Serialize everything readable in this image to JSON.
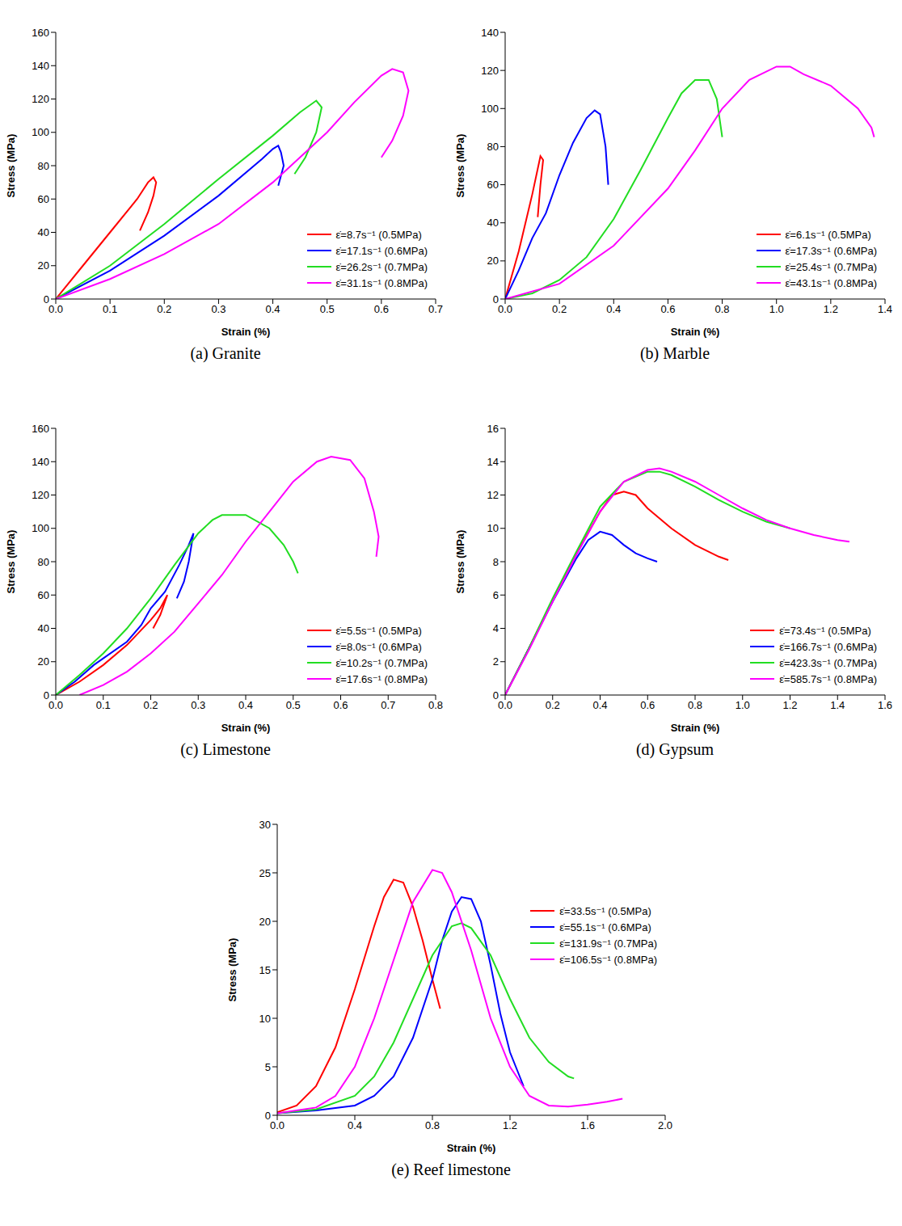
{
  "chart_data": [
    {
      "type": "line",
      "title": "(a) Granite",
      "x_label": "Strain (%)",
      "y_label": "Stress (MPa)",
      "xlim": [
        0,
        0.7
      ],
      "ylim": [
        0,
        160
      ],
      "xticks": [
        {
          "value": 0,
          "label": "0.0"
        },
        0.1,
        0.2,
        0.3,
        0.4,
        0.5,
        0.6,
        0.7
      ],
      "yticks": [
        0,
        20,
        40,
        60,
        80,
        100,
        120,
        140,
        160
      ],
      "grid": false,
      "legend": "lower right",
      "series": [
        {
          "name": "ε̇=8.7s⁻¹ (0.5MPa)",
          "color": "#ff0000",
          "x": [
            0,
            0.05,
            0.1,
            0.15,
            0.17,
            0.18,
            0.185,
            0.18,
            0.17,
            0.155
          ],
          "values": [
            0,
            20,
            40,
            60,
            70,
            73,
            70,
            62,
            52,
            41
          ]
        },
        {
          "name": "ε̇=17.1s⁻¹ (0.6MPa)",
          "color": "#0000ff",
          "x": [
            0,
            0.1,
            0.2,
            0.3,
            0.38,
            0.4,
            0.41,
            0.415,
            0.42,
            0.41
          ],
          "values": [
            0,
            17,
            38,
            62,
            84,
            90,
            92,
            88,
            80,
            68
          ]
        },
        {
          "name": "ε̇=26.2s⁻¹ (0.7MPa)",
          "color": "#22dd22",
          "x": [
            0,
            0.1,
            0.2,
            0.3,
            0.4,
            0.45,
            0.48,
            0.49,
            0.48,
            0.46,
            0.44
          ],
          "values": [
            0,
            20,
            45,
            72,
            98,
            112,
            119,
            115,
            100,
            85,
            75
          ]
        },
        {
          "name": "ε̇=31.1s⁻¹ (0.8MPa)",
          "color": "#ff00ff",
          "x": [
            0,
            0.1,
            0.2,
            0.3,
            0.4,
            0.5,
            0.55,
            0.6,
            0.62,
            0.64,
            0.65,
            0.64,
            0.62,
            0.6
          ],
          "values": [
            0,
            12,
            27,
            45,
            70,
            100,
            118,
            134,
            138,
            136,
            125,
            110,
            95,
            85
          ]
        }
      ]
    },
    {
      "type": "line",
      "title": "(b) Marble",
      "x_label": "Strain (%)",
      "y_label": "Stress (MPa)",
      "xlim": [
        0,
        1.4
      ],
      "ylim": [
        0,
        140
      ],
      "xticks": [
        {
          "value": 0,
          "label": "0.0"
        },
        0.2,
        0.4,
        0.6,
        0.8,
        {
          "value": 1,
          "label": "1.0"
        },
        1.2,
        1.4
      ],
      "yticks": [
        0,
        20,
        40,
        60,
        80,
        100,
        120,
        140
      ],
      "grid": false,
      "legend": "lower right",
      "series": [
        {
          "name": "ε̇=6.1s⁻¹ (0.5MPa)",
          "color": "#ff0000",
          "x": [
            0,
            0.05,
            0.1,
            0.13,
            0.14,
            0.13,
            0.12
          ],
          "values": [
            0,
            25,
            55,
            75,
            73,
            60,
            43
          ]
        },
        {
          "name": "ε̇=17.3s⁻¹ (0.6MPa)",
          "color": "#0000ff",
          "x": [
            0,
            0.05,
            0.1,
            0.15,
            0.2,
            0.25,
            0.3,
            0.33,
            0.35,
            0.37,
            0.38
          ],
          "values": [
            0,
            15,
            32,
            45,
            65,
            82,
            95,
            99,
            97,
            80,
            60
          ]
        },
        {
          "name": "ε̇=25.4s⁻¹ (0.7MPa)",
          "color": "#22dd22",
          "x": [
            0,
            0.1,
            0.2,
            0.3,
            0.4,
            0.5,
            0.6,
            0.65,
            0.7,
            0.75,
            0.78,
            0.8
          ],
          "values": [
            0,
            3,
            10,
            22,
            42,
            68,
            95,
            108,
            115,
            115,
            105,
            85
          ]
        },
        {
          "name": "ε̇=43.1s⁻¹ (0.8MPa)",
          "color": "#ff00ff",
          "x": [
            0,
            0.2,
            0.4,
            0.6,
            0.7,
            0.8,
            0.9,
            1.0,
            1.05,
            1.1,
            1.2,
            1.3,
            1.35,
            1.36
          ],
          "values": [
            0,
            8,
            28,
            58,
            78,
            100,
            115,
            122,
            122,
            118,
            112,
            100,
            90,
            85
          ]
        }
      ]
    },
    {
      "type": "line",
      "title": "(c) Limestone",
      "x_label": "Strain (%)",
      "y_label": "Stress (MPa)",
      "xlim": [
        0,
        0.8
      ],
      "ylim": [
        0,
        160
      ],
      "xticks": [
        {
          "value": 0,
          "label": "0.0"
        },
        0.1,
        0.2,
        0.3,
        0.4,
        0.5,
        0.6,
        0.7,
        0.8
      ],
      "yticks": [
        0,
        20,
        40,
        60,
        80,
        100,
        120,
        140,
        160
      ],
      "grid": false,
      "legend": "lower right",
      "series": [
        {
          "name": "ε̇=5.5s⁻¹ (0.5MPa)",
          "color": "#ff0000",
          "x": [
            0,
            0.05,
            0.1,
            0.15,
            0.2,
            0.22,
            0.235,
            0.22,
            0.205
          ],
          "values": [
            0,
            8,
            18,
            30,
            45,
            52,
            60,
            48,
            40
          ]
        },
        {
          "name": "ε̇=8.0s⁻¹ (0.6MPa)",
          "color": "#0000ff",
          "x": [
            0,
            0.04,
            0.08,
            0.1,
            0.15,
            0.18,
            0.2,
            0.23,
            0.26,
            0.28,
            0.29,
            0.28,
            0.27,
            0.255
          ],
          "values": [
            0,
            8,
            18,
            22,
            32,
            42,
            52,
            62,
            78,
            90,
            97,
            80,
            68,
            58
          ]
        },
        {
          "name": "ε̇=10.2s⁻¹ (0.7MPa)",
          "color": "#22dd22",
          "x": [
            0,
            0.05,
            0.1,
            0.15,
            0.2,
            0.25,
            0.3,
            0.33,
            0.35,
            0.4,
            0.45,
            0.48,
            0.5,
            0.51
          ],
          "values": [
            0,
            12,
            25,
            40,
            58,
            78,
            97,
            105,
            108,
            108,
            100,
            90,
            80,
            73
          ]
        },
        {
          "name": "ε̇=17.6s⁻¹ (0.8MPa)",
          "color": "#ff00ff",
          "x": [
            0.05,
            0.1,
            0.15,
            0.2,
            0.25,
            0.3,
            0.35,
            0.4,
            0.45,
            0.5,
            0.55,
            0.58,
            0.62,
            0.65,
            0.67,
            0.68,
            0.675
          ],
          "values": [
            0,
            6,
            14,
            25,
            38,
            55,
            72,
            92,
            110,
            128,
            140,
            143,
            141,
            130,
            110,
            95,
            83
          ]
        }
      ]
    },
    {
      "type": "line",
      "title": "(d) Gypsum",
      "x_label": "Strain (%)",
      "y_label": "Stress (MPa)",
      "xlim": [
        0,
        1.6
      ],
      "ylim": [
        0,
        16
      ],
      "xticks": [
        {
          "value": 0,
          "label": "0.0"
        },
        0.2,
        0.4,
        0.6,
        0.8,
        {
          "value": 1,
          "label": "1.0"
        },
        1.2,
        1.4,
        1.6
      ],
      "yticks": [
        0,
        2,
        4,
        6,
        8,
        10,
        12,
        14,
        16
      ],
      "grid": false,
      "legend": "lower right",
      "series": [
        {
          "name": "ε̇=73.4s⁻¹ (0.5MPa)",
          "color": "#ff0000",
          "x": [
            0,
            0.1,
            0.2,
            0.3,
            0.4,
            0.45,
            0.5,
            0.55,
            0.6,
            0.7,
            0.8,
            0.9,
            0.94
          ],
          "values": [
            0,
            2.8,
            5.7,
            8.5,
            11,
            12,
            12.2,
            12,
            11.2,
            10,
            9,
            8.3,
            8.1
          ]
        },
        {
          "name": "ε̇=166.7s⁻¹ (0.6MPa)",
          "color": "#0000ff",
          "x": [
            0,
            0.1,
            0.2,
            0.3,
            0.35,
            0.4,
            0.45,
            0.5,
            0.55,
            0.6,
            0.64
          ],
          "values": [
            0,
            2.8,
            5.6,
            8.2,
            9.3,
            9.8,
            9.6,
            9,
            8.5,
            8.2,
            8
          ]
        },
        {
          "name": "ε̇=423.3s⁻¹ (0.7MPa)",
          "color": "#22dd22",
          "x": [
            0,
            0.1,
            0.2,
            0.3,
            0.4,
            0.5,
            0.6,
            0.65,
            0.7,
            0.8,
            0.9,
            1.0,
            1.1,
            1.2
          ],
          "values": [
            0,
            2.8,
            5.8,
            8.6,
            11.3,
            12.8,
            13.4,
            13.4,
            13.2,
            12.5,
            11.7,
            11,
            10.4,
            10
          ]
        },
        {
          "name": "ε̇=585.7s⁻¹ (0.8MPa)",
          "color": "#ff00ff",
          "x": [
            0,
            0.1,
            0.2,
            0.3,
            0.4,
            0.5,
            0.6,
            0.65,
            0.7,
            0.8,
            0.9,
            1.0,
            1.1,
            1.2,
            1.3,
            1.4,
            1.45
          ],
          "values": [
            0,
            2.7,
            5.6,
            8.4,
            11,
            12.8,
            13.5,
            13.6,
            13.4,
            12.8,
            12,
            11.2,
            10.5,
            10,
            9.6,
            9.3,
            9.2
          ]
        }
      ]
    },
    {
      "type": "line",
      "title": "(e) Reef limestone",
      "x_label": "Strain (%)",
      "y_label": "Stress (MPa)",
      "xlim": [
        0,
        2
      ],
      "ylim": [
        0,
        30
      ],
      "xticks": [
        {
          "value": 0,
          "label": "0.0"
        },
        0.4,
        0.8,
        1.2,
        1.6,
        {
          "value": 2,
          "label": "2.0"
        }
      ],
      "yticks": [
        0,
        5,
        10,
        15,
        20,
        25,
        30
      ],
      "grid": false,
      "legend": "right",
      "series": [
        {
          "name": "ε̇=33.5s⁻¹ (0.5MPa)",
          "color": "#ff0000",
          "x": [
            0,
            0.1,
            0.2,
            0.3,
            0.4,
            0.5,
            0.55,
            0.6,
            0.65,
            0.7,
            0.75,
            0.8,
            0.84
          ],
          "values": [
            0.3,
            1,
            3,
            7,
            13,
            19.5,
            22.5,
            24.3,
            24,
            21.5,
            18,
            14,
            11
          ]
        },
        {
          "name": "ε̇=55.1s⁻¹ (0.6MPa)",
          "color": "#0000ff",
          "x": [
            0,
            0.2,
            0.4,
            0.5,
            0.6,
            0.7,
            0.8,
            0.85,
            0.9,
            0.95,
            1.0,
            1.05,
            1.1,
            1.15,
            1.2,
            1.27
          ],
          "values": [
            0.2,
            0.5,
            1,
            2,
            4,
            8,
            14,
            18,
            21,
            22.5,
            22.3,
            20,
            15.5,
            10.5,
            6.5,
            3
          ]
        },
        {
          "name": "ε̇=131.9s⁻¹ (0.7MPa)",
          "color": "#22dd22",
          "x": [
            0,
            0.2,
            0.4,
            0.5,
            0.6,
            0.7,
            0.8,
            0.9,
            0.95,
            1.0,
            1.1,
            1.2,
            1.3,
            1.4,
            1.5,
            1.53
          ],
          "values": [
            0.2,
            0.6,
            2,
            4,
            7.5,
            12,
            16.5,
            19.5,
            19.8,
            19.3,
            16.5,
            12,
            8,
            5.5,
            4,
            3.8
          ]
        },
        {
          "name": "ε̇=106.5s⁻¹ (0.8MPa)",
          "color": "#ff00ff",
          "x": [
            0,
            0.2,
            0.3,
            0.4,
            0.5,
            0.6,
            0.7,
            0.8,
            0.85,
            0.9,
            1.0,
            1.1,
            1.2,
            1.3,
            1.4,
            1.5,
            1.6,
            1.7,
            1.78
          ],
          "values": [
            0.2,
            0.8,
            2,
            5,
            10,
            16,
            22,
            25.3,
            25,
            23,
            17,
            10,
            5,
            2,
            1,
            0.9,
            1.1,
            1.4,
            1.7
          ]
        }
      ]
    }
  ]
}
